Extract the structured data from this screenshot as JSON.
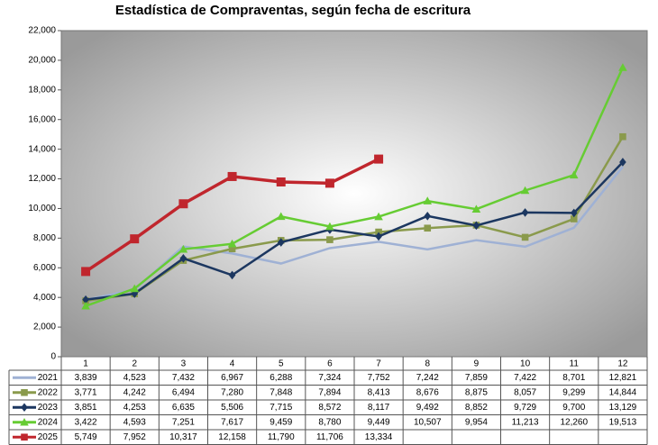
{
  "chart_data": {
    "type": "line",
    "title": "Estadística de Compraventas, según fecha de escritura",
    "categories": [
      "1",
      "2",
      "3",
      "4",
      "5",
      "6",
      "7",
      "8",
      "9",
      "10",
      "11",
      "12"
    ],
    "ylim": [
      0,
      22000
    ],
    "yticks": [
      0,
      {
        "value": 2000,
        "label": "2,000"
      },
      {
        "value": 4000,
        "label": "4,000"
      },
      {
        "value": 6000,
        "label": "6,000"
      },
      {
        "value": 8000,
        "label": "8,000"
      },
      {
        "value": 10000,
        "label": "10,000"
      },
      {
        "value": 12000,
        "label": "12,000"
      },
      {
        "value": 14000,
        "label": "14,000"
      },
      {
        "value": 16000,
        "label": "16,000"
      },
      {
        "value": 18000,
        "label": "18,000"
      },
      {
        "value": 20000,
        "label": "20,000"
      },
      {
        "value": 22000,
        "label": "22,000"
      }
    ],
    "series": [
      {
        "name": "2021",
        "color": "#9fb1d4",
        "marker": "none",
        "values": [
          3839,
          4523,
          7432,
          6967,
          6288,
          7324,
          7752,
          7242,
          7859,
          7422,
          8701,
          12821
        ],
        "value_labels": [
          "3,839",
          "4,523",
          "7,432",
          "6,967",
          "6,288",
          "7,324",
          "7,752",
          "7,242",
          "7,859",
          "7,422",
          "8,701",
          "12,821"
        ]
      },
      {
        "name": "2022",
        "color": "#8a9a4c",
        "marker": "square",
        "values": [
          3771,
          4242,
          6494,
          7280,
          7848,
          7894,
          8413,
          8676,
          8875,
          8057,
          9299,
          14844
        ],
        "value_labels": [
          "3,771",
          "4,242",
          "6,494",
          "7,280",
          "7,848",
          "7,894",
          "8,413",
          "8,676",
          "8,875",
          "8,057",
          "9,299",
          "14,844"
        ]
      },
      {
        "name": "2023",
        "color": "#1c3760",
        "marker": "diamond",
        "values": [
          3851,
          4253,
          6635,
          5506,
          7715,
          8572,
          8117,
          9492,
          8852,
          9729,
          9700,
          13129
        ],
        "value_labels": [
          "3,851",
          "4,253",
          "6,635",
          "5,506",
          "7,715",
          "8,572",
          "8,117",
          "9,492",
          "8,852",
          "9,729",
          "9,700",
          "13,129"
        ]
      },
      {
        "name": "2024",
        "color": "#66cc33",
        "marker": "triangle",
        "values": [
          3422,
          4593,
          7251,
          7617,
          9459,
          8780,
          9449,
          10507,
          9954,
          11213,
          12260,
          19513
        ],
        "value_labels": [
          "3,422",
          "4,593",
          "7,251",
          "7,617",
          "9,459",
          "8,780",
          "9,449",
          "10,507",
          "9,954",
          "11,213",
          "12,260",
          "19,513"
        ]
      },
      {
        "name": "2025",
        "color": "#c0262d",
        "marker": "square",
        "values": [
          5749,
          7952,
          10317,
          12158,
          11790,
          11706,
          13334,
          null,
          null,
          null,
          null,
          null
        ],
        "value_labels": [
          "5,749",
          "7,952",
          "10,317",
          "12,158",
          "11,790",
          "11,706",
          "13,334",
          null,
          null,
          null,
          null,
          null
        ]
      }
    ]
  }
}
